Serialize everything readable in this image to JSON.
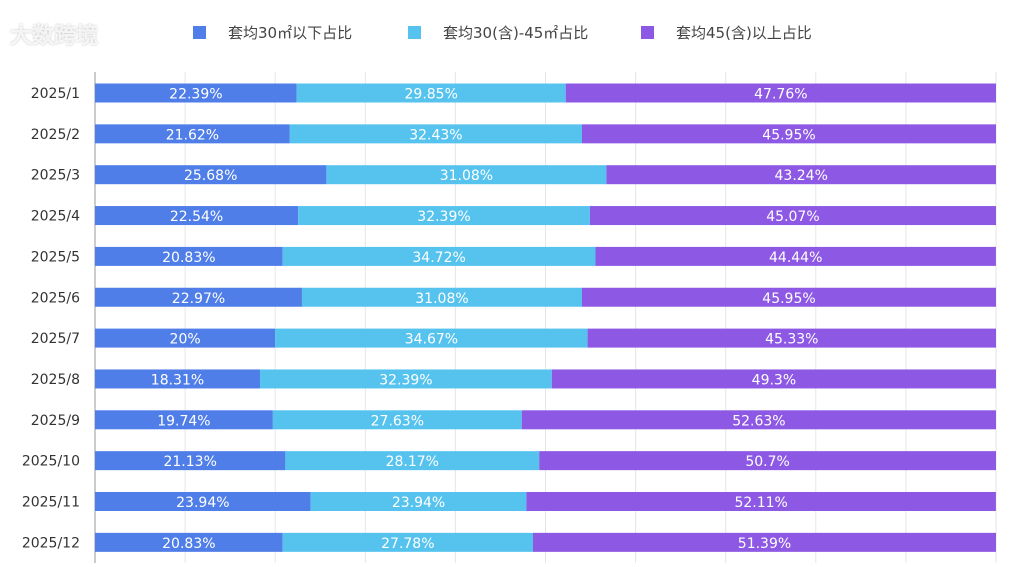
{
  "chart_data": {
    "type": "bar",
    "orientation": "horizontal",
    "stacked": true,
    "categories": [
      "2025/1",
      "2025/2",
      "2025/3",
      "2025/4",
      "2025/5",
      "2025/6",
      "2025/7",
      "2025/8",
      "2025/9",
      "2025/10",
      "2025/11",
      "2025/12"
    ],
    "series": [
      {
        "name": "套均30㎡以下占比",
        "color": "#4f7ee8",
        "values": [
          22.39,
          21.62,
          25.68,
          22.54,
          20.83,
          22.97,
          20,
          18.31,
          19.74,
          21.13,
          23.94,
          20.83
        ]
      },
      {
        "name": "套均30(含)-45㎡占比",
        "color": "#56c3ef",
        "values": [
          29.85,
          32.43,
          31.08,
          32.39,
          34.72,
          31.08,
          34.67,
          32.39,
          27.63,
          28.17,
          23.94,
          27.78
        ]
      },
      {
        "name": "套均45(含)以上占比",
        "color": "#8d58e4",
        "values": [
          47.76,
          45.95,
          43.24,
          45.07,
          44.44,
          45.95,
          45.33,
          49.3,
          52.63,
          50.7,
          52.11,
          51.39
        ]
      }
    ],
    "xlim": [
      0,
      100
    ],
    "value_suffix": "%",
    "grid": true,
    "legend": "top"
  },
  "watermark": "大数跨境"
}
